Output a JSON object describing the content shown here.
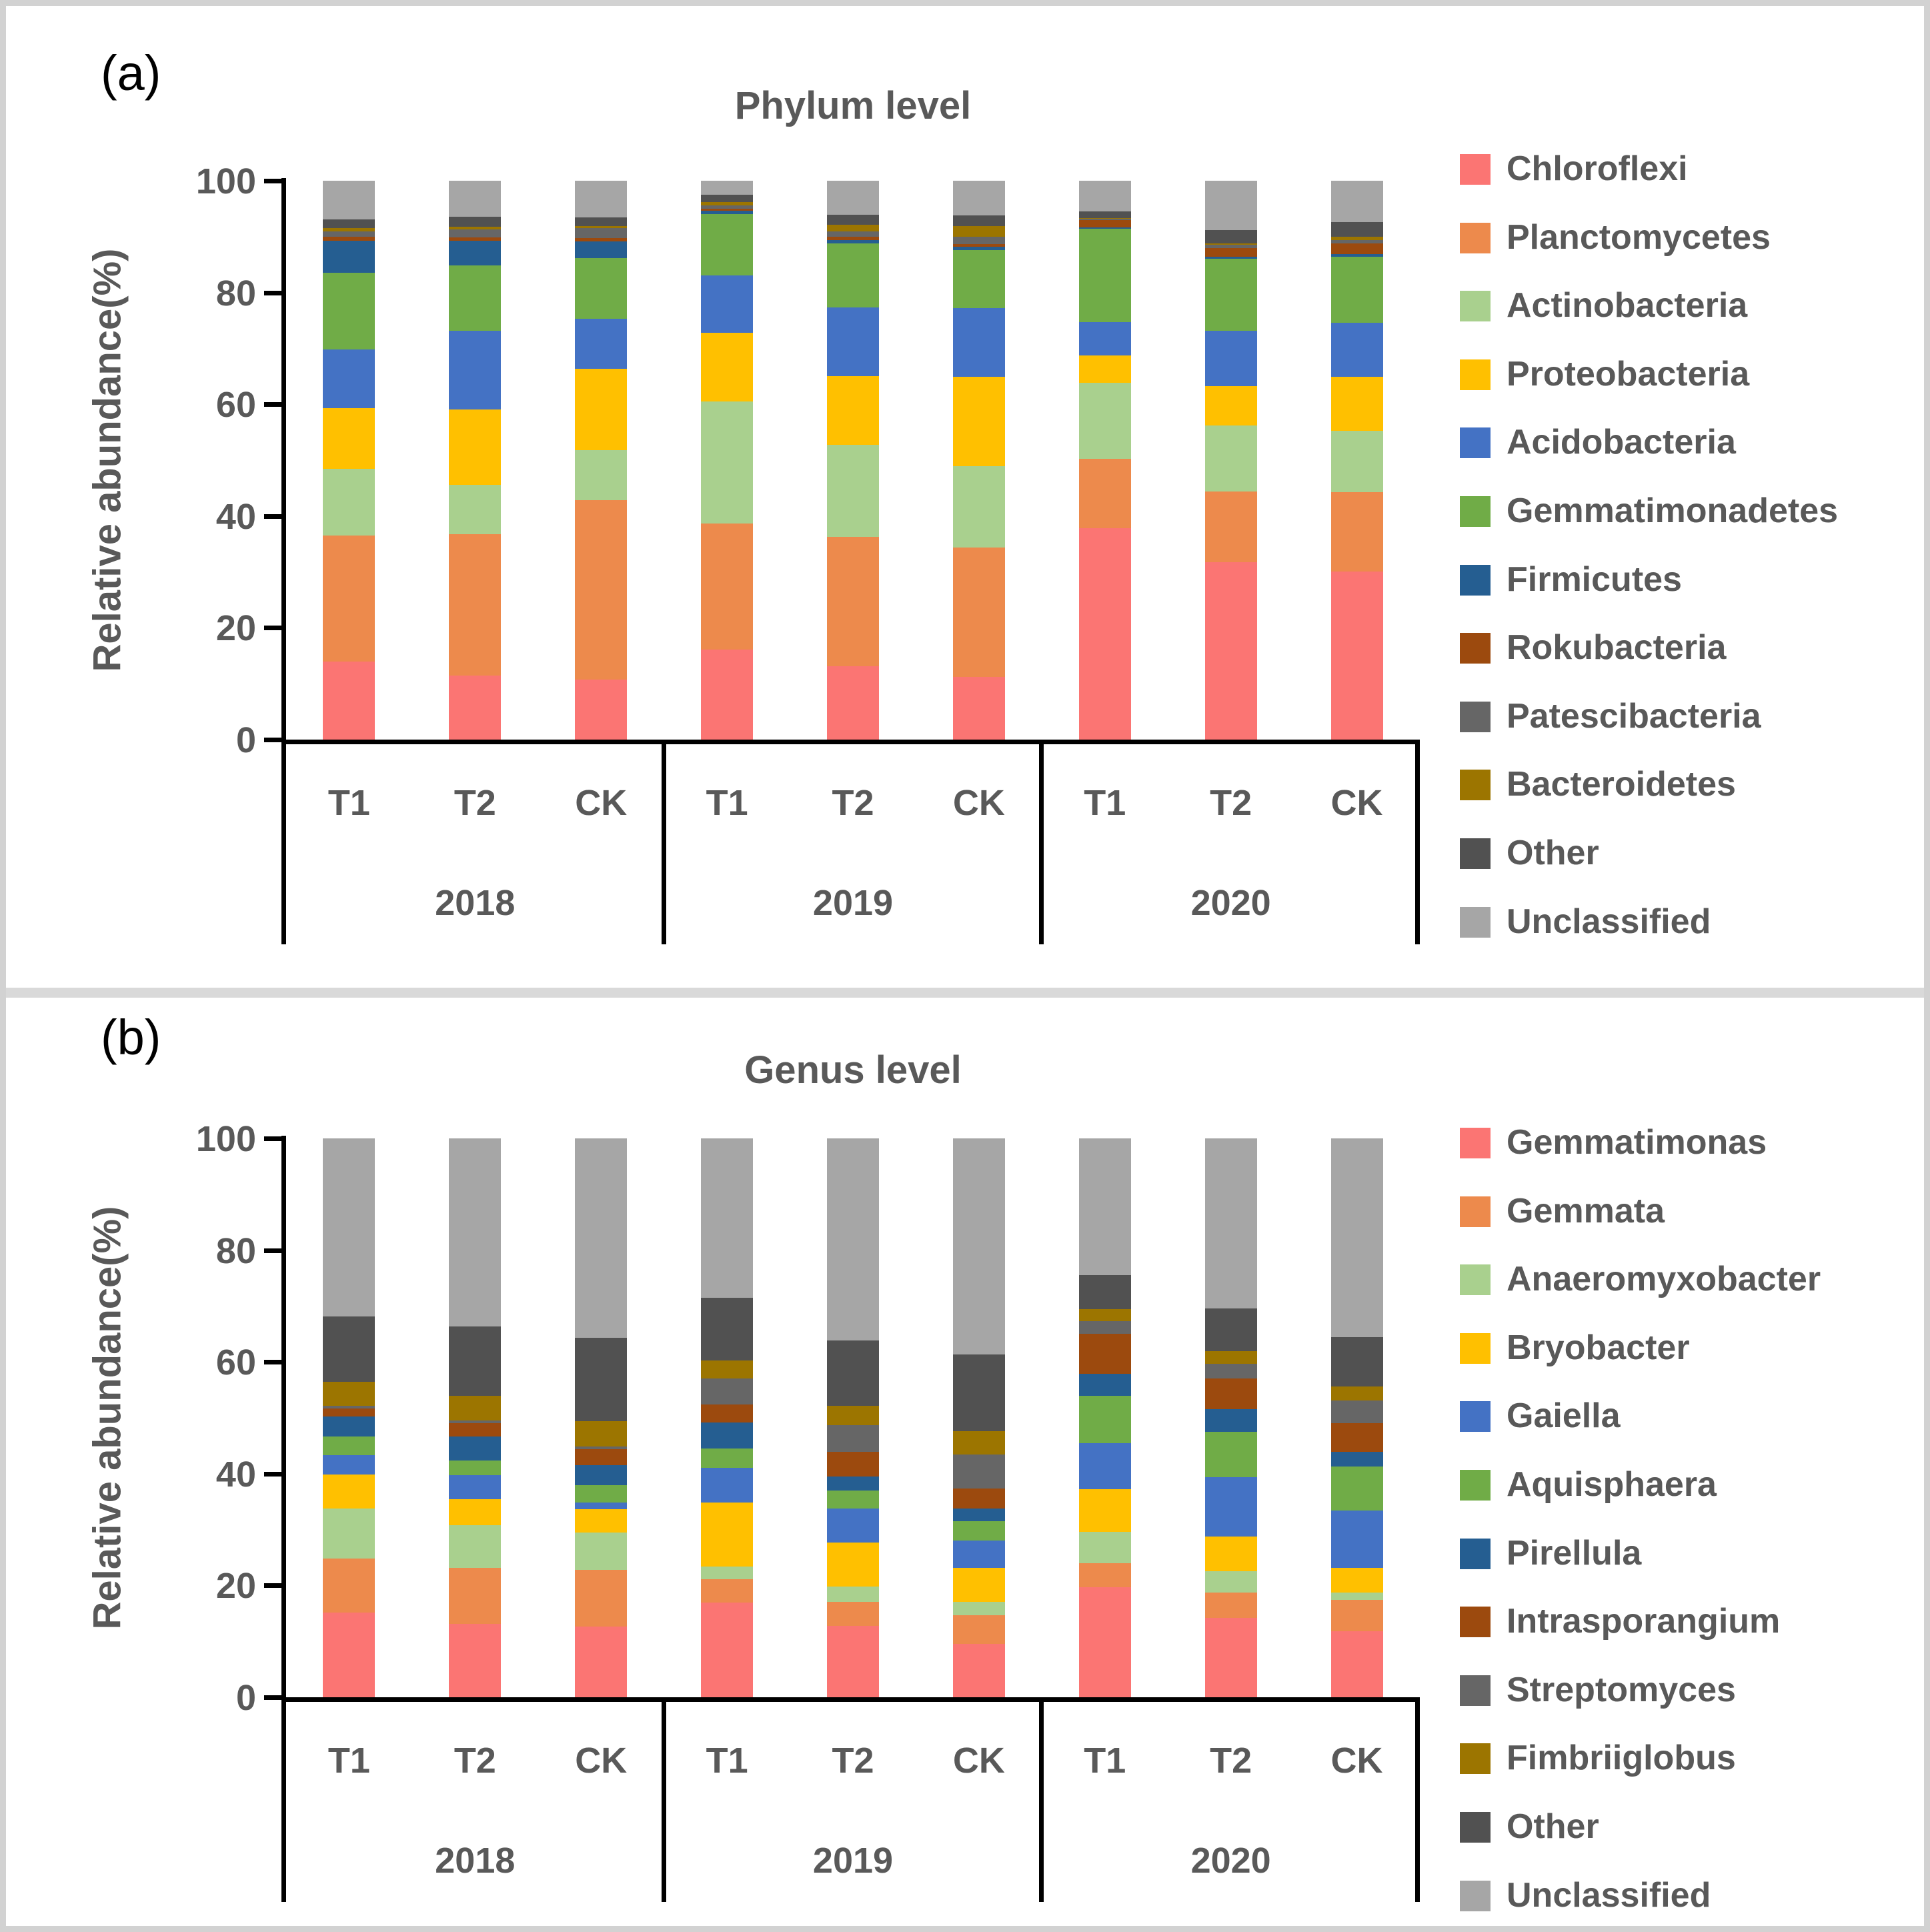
{
  "figure": {
    "border_color": "#D2D2D2",
    "divider_color": "#D9D9D9",
    "text_color": "#595959",
    "axis_color": "#000000",
    "background": "#FFFFFF"
  },
  "panels": [
    {
      "label": "(a)",
      "title": "Phylum level",
      "ylabel": "Relative abundance(%)"
    },
    {
      "label": "(b)",
      "title": "Genus level",
      "ylabel": "Relative abundance(%)"
    }
  ],
  "chart_data": [
    {
      "type": "bar",
      "stacked": true,
      "title": "Phylum level",
      "ylabel": "Relative abundance(%)",
      "ylim": [
        0,
        100
      ],
      "yticks": [
        0,
        20,
        40,
        60,
        80,
        100
      ],
      "grid": false,
      "legend_position": "right",
      "group_labels": [
        "2018",
        "2019",
        "2020"
      ],
      "categories": [
        "T1",
        "T2",
        "CK",
        "T1",
        "T2",
        "CK",
        "T1",
        "T2",
        "CK"
      ],
      "series": [
        {
          "name": "Chloroflexi",
          "color": "#FB7573",
          "values": [
            14.0,
            11.5,
            10.8,
            16.1,
            13.1,
            11.2,
            37.8,
            31.8,
            30.1
          ]
        },
        {
          "name": "Planctomycetes",
          "color": "#ED8A4C",
          "values": [
            22.5,
            25.2,
            32.1,
            22.6,
            23.2,
            23.2,
            12.4,
            12.6,
            14.2
          ]
        },
        {
          "name": "Actinobacteria",
          "color": "#A9D08E",
          "values": [
            11.9,
            8.9,
            8.9,
            21.8,
            16.4,
            14.5,
            13.6,
            11.8,
            11.0
          ]
        },
        {
          "name": "Proteobacteria",
          "color": "#FFC000",
          "values": [
            10.9,
            13.5,
            14.5,
            12.3,
            12.3,
            16.0,
            5.0,
            7.0,
            9.6
          ]
        },
        {
          "name": "Acidobacteria",
          "color": "#4472C4",
          "values": [
            10.4,
            14.0,
            9.0,
            10.3,
            12.3,
            12.3,
            5.9,
            9.9,
            9.7
          ]
        },
        {
          "name": "Gemmatimonadetes",
          "color": "#70AC47",
          "values": [
            13.8,
            11.7,
            10.9,
            11.0,
            11.5,
            10.4,
            16.7,
            12.9,
            11.8
          ]
        },
        {
          "name": "Firmicutes",
          "color": "#255E91",
          "values": [
            5.7,
            4.5,
            3.0,
            0.5,
            0.6,
            0.6,
            0.2,
            0.4,
            0.5
          ]
        },
        {
          "name": "Rokubacteria",
          "color": "#9C4A0E",
          "values": [
            0.7,
            0.6,
            0.6,
            0.4,
            0.6,
            0.5,
            1.4,
            1.6,
            1.9
          ]
        },
        {
          "name": "Patescibacteria",
          "color": "#666666",
          "values": [
            1.0,
            1.4,
            1.7,
            0.6,
            0.9,
            1.3,
            0.2,
            0.5,
            0.6
          ]
        },
        {
          "name": "Bacteroidetes",
          "color": "#9C7500",
          "values": [
            0.6,
            0.5,
            0.4,
            0.6,
            1.2,
            1.9,
            0.1,
            0.3,
            0.6
          ]
        },
        {
          "name": "Other",
          "color": "#515151",
          "values": [
            1.5,
            1.8,
            1.6,
            1.3,
            1.8,
            1.9,
            1.2,
            2.4,
            2.6
          ]
        },
        {
          "name": "Unclassified",
          "color": "#A6A6A6",
          "values": [
            6.9,
            6.4,
            6.5,
            2.5,
            6.1,
            6.2,
            5.5,
            8.8,
            7.4
          ]
        }
      ]
    },
    {
      "type": "bar",
      "stacked": true,
      "title": "Genus level",
      "ylabel": "Relative abundance(%)",
      "ylim": [
        0,
        100
      ],
      "yticks": [
        0,
        20,
        40,
        60,
        80,
        100
      ],
      "grid": false,
      "legend_position": "right",
      "group_labels": [
        "2018",
        "2019",
        "2020"
      ],
      "categories": [
        "T1",
        "T2",
        "CK",
        "T1",
        "T2",
        "CK",
        "T1",
        "T2",
        "CK"
      ],
      "series": [
        {
          "name": "Gemmatimonas",
          "color": "#FB7573",
          "values": [
            15.1,
            13.1,
            12.6,
            16.9,
            12.8,
            9.5,
            19.7,
            14.2,
            11.8
          ]
        },
        {
          "name": "Gemmata",
          "color": "#ED8A4C",
          "values": [
            9.7,
            10.1,
            10.2,
            4.2,
            4.3,
            5.2,
            4.3,
            4.5,
            5.6
          ]
        },
        {
          "name": "Anaeromyxobacter",
          "color": "#A9D08E",
          "values": [
            9.0,
            7.6,
            6.7,
            2.3,
            2.7,
            2.4,
            5.6,
            3.9,
            1.3
          ]
        },
        {
          "name": "Bryobacter",
          "color": "#FFC000",
          "values": [
            6.1,
            4.7,
            4.1,
            11.4,
            7.9,
            6.1,
            7.6,
            6.2,
            4.5
          ]
        },
        {
          "name": "Gaiella",
          "color": "#4472C4",
          "values": [
            3.4,
            4.2,
            1.2,
            6.3,
            6.1,
            4.9,
            8.3,
            10.6,
            10.2
          ]
        },
        {
          "name": "Aquisphaera",
          "color": "#70AC47",
          "values": [
            3.4,
            2.7,
            3.1,
            3.4,
            3.2,
            3.4,
            8.5,
            8.1,
            7.9
          ]
        },
        {
          "name": "Pirellula",
          "color": "#255E91",
          "values": [
            3.6,
            4.3,
            3.6,
            4.7,
            2.5,
            2.3,
            3.9,
            4.1,
            2.6
          ]
        },
        {
          "name": "Intrasporangium",
          "color": "#9C4A0E",
          "values": [
            1.4,
            2.4,
            2.9,
            3.2,
            4.4,
            3.5,
            7.2,
            5.5,
            5.2
          ]
        },
        {
          "name": "Streptomyces",
          "color": "#666666",
          "values": [
            0.4,
            0.4,
            0.5,
            4.7,
            4.8,
            6.1,
            2.2,
            2.6,
            4.0
          ]
        },
        {
          "name": "Fimbriiglobus",
          "color": "#9C7500",
          "values": [
            4.4,
            4.4,
            4.5,
            3.2,
            3.5,
            4.2,
            2.2,
            2.2,
            2.5
          ]
        },
        {
          "name": "Other",
          "color": "#515151",
          "values": [
            11.6,
            12.5,
            14.9,
            11.2,
            11.7,
            13.8,
            6.0,
            7.7,
            8.8
          ]
        },
        {
          "name": "Unclassified",
          "color": "#A6A6A6",
          "values": [
            31.9,
            33.6,
            35.7,
            28.5,
            36.1,
            38.6,
            24.5,
            30.4,
            35.6
          ]
        }
      ]
    }
  ]
}
